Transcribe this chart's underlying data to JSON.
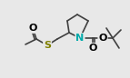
{
  "bg_color": "#e8e8e8",
  "bond_color": "#404040",
  "atom_colors": {
    "N": "#00aaaa",
    "O": "#000000",
    "S": "#808000",
    "C": "#404040"
  },
  "bond_width": 1.2,
  "figsize": [
    1.43,
    0.86
  ],
  "dpi": 100,
  "font_size_atom": 7.5
}
